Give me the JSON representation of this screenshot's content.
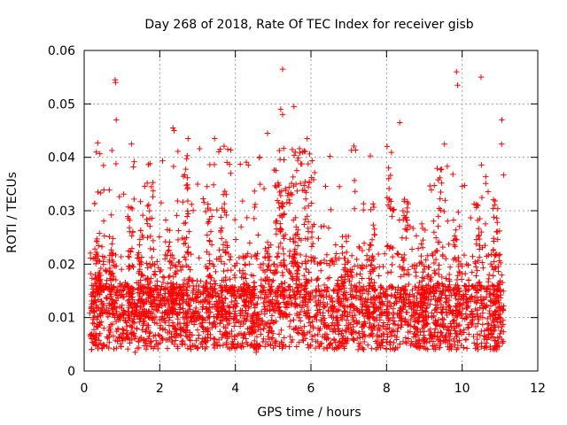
{
  "chart_data": {
    "type": "scatter",
    "title": "Day 268 of 2018, Rate Of TEC Index for receiver gisb",
    "xlabel": "GPS time / hours",
    "ylabel": "ROTI / TECUs",
    "xlim": [
      0,
      12
    ],
    "ylim": [
      0,
      0.06
    ],
    "grid": true,
    "marker": "+",
    "color": "#ff0000",
    "x_ticks": [
      {
        "value": 0,
        "label": "0"
      },
      {
        "value": 2,
        "label": "2"
      },
      {
        "value": 4,
        "label": "4"
      },
      {
        "value": 6,
        "label": "6"
      },
      {
        "value": 8,
        "label": "8"
      },
      {
        "value": 10,
        "label": "10"
      },
      {
        "value": 12,
        "label": "12"
      }
    ],
    "y_ticks": [
      {
        "value": 0,
        "label": "0"
      },
      {
        "value": 0.01,
        "label": "0.01"
      },
      {
        "value": 0.02,
        "label": "0.02"
      },
      {
        "value": 0.03,
        "label": "0.03"
      },
      {
        "value": 0.04,
        "label": "0.04"
      },
      {
        "value": 0.05,
        "label": "0.05"
      },
      {
        "value": 0.06,
        "label": "0.06"
      }
    ],
    "series": [
      {
        "name": "ROTI",
        "x_range": [
          0.15,
          11.1
        ],
        "notable_points": [
          {
            "x": 0.82,
            "y": 0.0545
          },
          {
            "x": 0.83,
            "y": 0.054
          },
          {
            "x": 0.85,
            "y": 0.047
          },
          {
            "x": 1.25,
            "y": 0.0425
          },
          {
            "x": 2.35,
            "y": 0.0455
          },
          {
            "x": 2.38,
            "y": 0.045
          },
          {
            "x": 2.75,
            "y": 0.0435
          },
          {
            "x": 3.45,
            "y": 0.0435
          },
          {
            "x": 4.85,
            "y": 0.0445
          },
          {
            "x": 5.25,
            "y": 0.0565
          },
          {
            "x": 5.2,
            "y": 0.049
          },
          {
            "x": 5.25,
            "y": 0.048
          },
          {
            "x": 5.55,
            "y": 0.0495
          },
          {
            "x": 5.9,
            "y": 0.0435
          },
          {
            "x": 8.35,
            "y": 0.0465
          },
          {
            "x": 9.85,
            "y": 0.056
          },
          {
            "x": 9.88,
            "y": 0.0535
          },
          {
            "x": 10.5,
            "y": 0.055
          },
          {
            "x": 11.05,
            "y": 0.047
          },
          {
            "x": 4.55,
            "y": 0.0035
          },
          {
            "x": 1.35,
            "y": 0.0035
          }
        ]
      }
    ]
  }
}
